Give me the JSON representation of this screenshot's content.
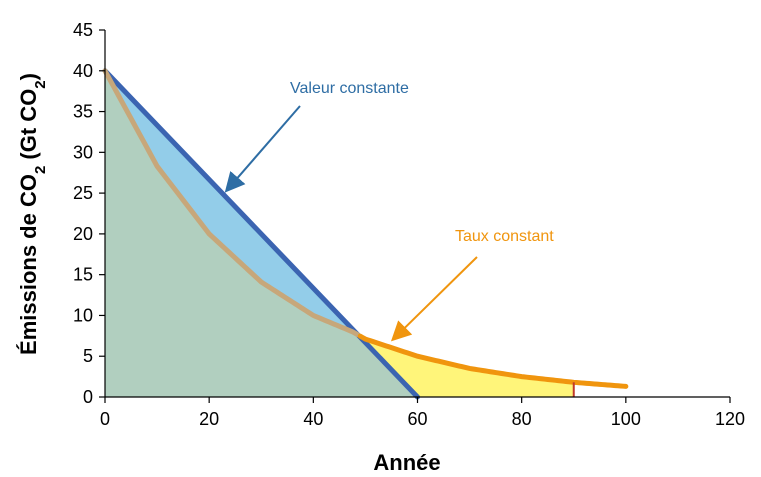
{
  "chart_data": {
    "type": "area",
    "xlabel": "Année",
    "ylabel": {
      "main": "Émissions de CO",
      "sub1": "2",
      "mid": " (Gt CO",
      "sub2": "2",
      "end": ")"
    },
    "xlim": [
      0,
      120
    ],
    "ylim": [
      0,
      45
    ],
    "x_ticks": [
      0,
      20,
      40,
      60,
      80,
      100,
      120
    ],
    "y_ticks": [
      0,
      5,
      10,
      15,
      20,
      25,
      30,
      35,
      40,
      45
    ],
    "grid": false,
    "series": [
      {
        "name": "Valeur constante",
        "color": "#3b64b1",
        "fill": "#93cde9",
        "x": [
          0,
          60
        ],
        "y": [
          40,
          0
        ]
      },
      {
        "name": "Taux constant",
        "color": "#f0950e",
        "fill": "#fff57a",
        "x": [
          0,
          10,
          20,
          30,
          40,
          47.5,
          50,
          60,
          70,
          80,
          90,
          100
        ],
        "y": [
          40,
          28.3,
          20.0,
          14.1,
          10.0,
          8.0,
          7.1,
          5.0,
          3.5,
          2.5,
          1.8,
          1.3
        ]
      }
    ],
    "annotations": [
      {
        "text": "Valeur constante",
        "color": "#2e6da4",
        "points_to": {
          "x": 24,
          "y": 25.8
        }
      },
      {
        "text": "Taux constant",
        "color": "#f0950e",
        "points_to": {
          "x": 56,
          "y": 7.5
        }
      }
    ],
    "marker_line": {
      "x": 90,
      "color": "#c0392b"
    }
  }
}
